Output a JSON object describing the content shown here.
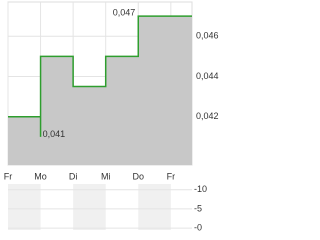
{
  "chart_data": [
    {
      "type": "step",
      "xlim": [
        0,
        5.65
      ],
      "xticks": [
        {
          "value": 0,
          "label": "Fr"
        },
        {
          "value": 1,
          "label": "Mo"
        },
        {
          "value": 2,
          "label": "Di"
        },
        {
          "value": 3,
          "label": "Mi"
        },
        {
          "value": 4,
          "label": "Do"
        },
        {
          "value": 5,
          "label": "Fr"
        }
      ],
      "ylim": [
        0.0396,
        0.0477
      ],
      "yticks": [
        {
          "value": 0.042,
          "label": "0,042"
        },
        {
          "value": 0.044,
          "label": "0,044"
        },
        {
          "value": 0.046,
          "label": "0,046"
        }
      ],
      "grid": true,
      "series": [
        {
          "color": "#2e9e2e",
          "fill": "#c8c8c8",
          "x": [
            0,
            1,
            1,
            1,
            2,
            2,
            3,
            3,
            4,
            4,
            5.65
          ],
          "values": [
            0.042,
            0.042,
            0.041,
            0.045,
            0.045,
            0.0435,
            0.0435,
            0.045,
            0.045,
            0.047,
            0.047
          ]
        }
      ],
      "annotations": [
        {
          "value": 0.047,
          "label": "0,047",
          "x": 4
        },
        {
          "value": 0.041,
          "label": "0,041",
          "x": 1
        }
      ]
    },
    {
      "type": "volume",
      "ylim": [
        -0.5,
        11.5
      ],
      "yticks": [
        {
          "value": 10,
          "label": "-10"
        },
        {
          "value": 5,
          "label": "-5"
        },
        {
          "value": 0,
          "label": "-0"
        }
      ]
    }
  ]
}
